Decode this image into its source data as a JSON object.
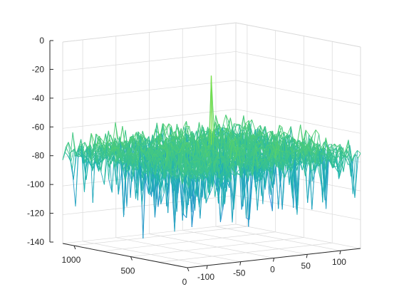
{
  "chart_data": {
    "type": "surface-mesh",
    "z_axis": {
      "range": [
        -140,
        0
      ],
      "ticks": [
        "0",
        "-20",
        "-40",
        "-60",
        "-80",
        "-100",
        "-120",
        "-140"
      ]
    },
    "left_axis": {
      "range": [
        0,
        1100
      ],
      "ticks": [
        "1000",
        "500",
        "0"
      ]
    },
    "right_axis": {
      "range": [
        -130,
        130
      ],
      "ticks": [
        "-100",
        "-50",
        "0",
        "50",
        "100"
      ]
    },
    "grid": true,
    "noise_floor_level": -75,
    "peak": {
      "left_value": 550,
      "right_value": 0,
      "z": -22
    },
    "colors": {
      "low": "#2c7fe0",
      "mid": "#1fb5b0",
      "high": "#66d85a",
      "peak": "#7be04a",
      "box": "#d9d9d9",
      "axis": "#262626"
    }
  }
}
